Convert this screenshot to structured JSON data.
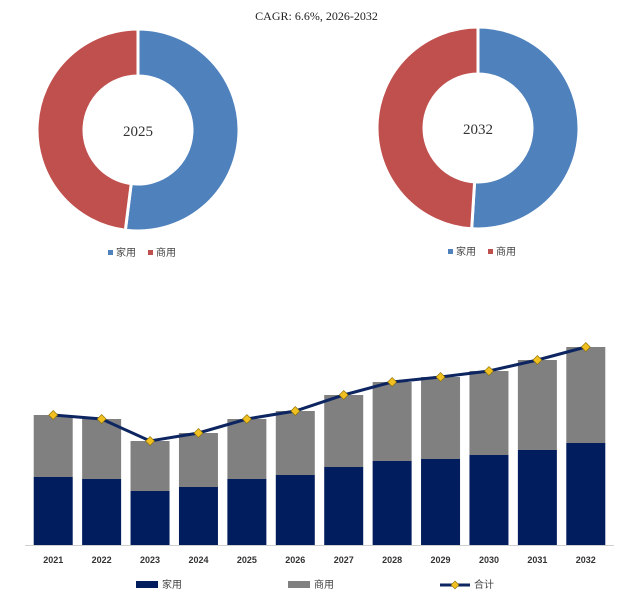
{
  "title": "CAGR: 6.6%, 2026-2032",
  "colors": {
    "household": "#4f81bd",
    "commercial": "#c0504d",
    "bar_household": "#021d5e",
    "bar_commercial": "#808080",
    "line": "#0d2560",
    "marker": "#f0c020"
  },
  "chart_data": [
    {
      "type": "pie",
      "center_label": "2025",
      "labels": [
        "家用",
        "商用"
      ],
      "values": [
        52,
        48
      ],
      "legend": "bottom"
    },
    {
      "type": "pie",
      "center_label": "2032",
      "labels": [
        "家用",
        "商用"
      ],
      "values": [
        51,
        49
      ],
      "legend": "bottom"
    },
    {
      "type": "bar",
      "stacked": true,
      "categories": [
        "2021",
        "2022",
        "2023",
        "2024",
        "2025",
        "2026",
        "2027",
        "2028",
        "2029",
        "2030",
        "2031",
        "2032"
      ],
      "series": [
        {
          "name": "家用",
          "values": [
            68,
            66,
            54,
            58,
            66,
            70,
            78,
            84,
            86,
            90,
            95,
            102
          ]
        },
        {
          "name": "商用",
          "values": [
            62,
            60,
            50,
            54,
            60,
            64,
            72,
            79,
            82,
            84,
            90,
            96
          ]
        },
        {
          "name": "合计",
          "type": "line",
          "values": [
            130,
            126,
            104,
            112,
            126,
            134,
            150,
            163,
            168,
            174,
            185,
            198
          ]
        }
      ],
      "ylim": [
        0,
        210
      ],
      "legend": "bottom"
    }
  ]
}
